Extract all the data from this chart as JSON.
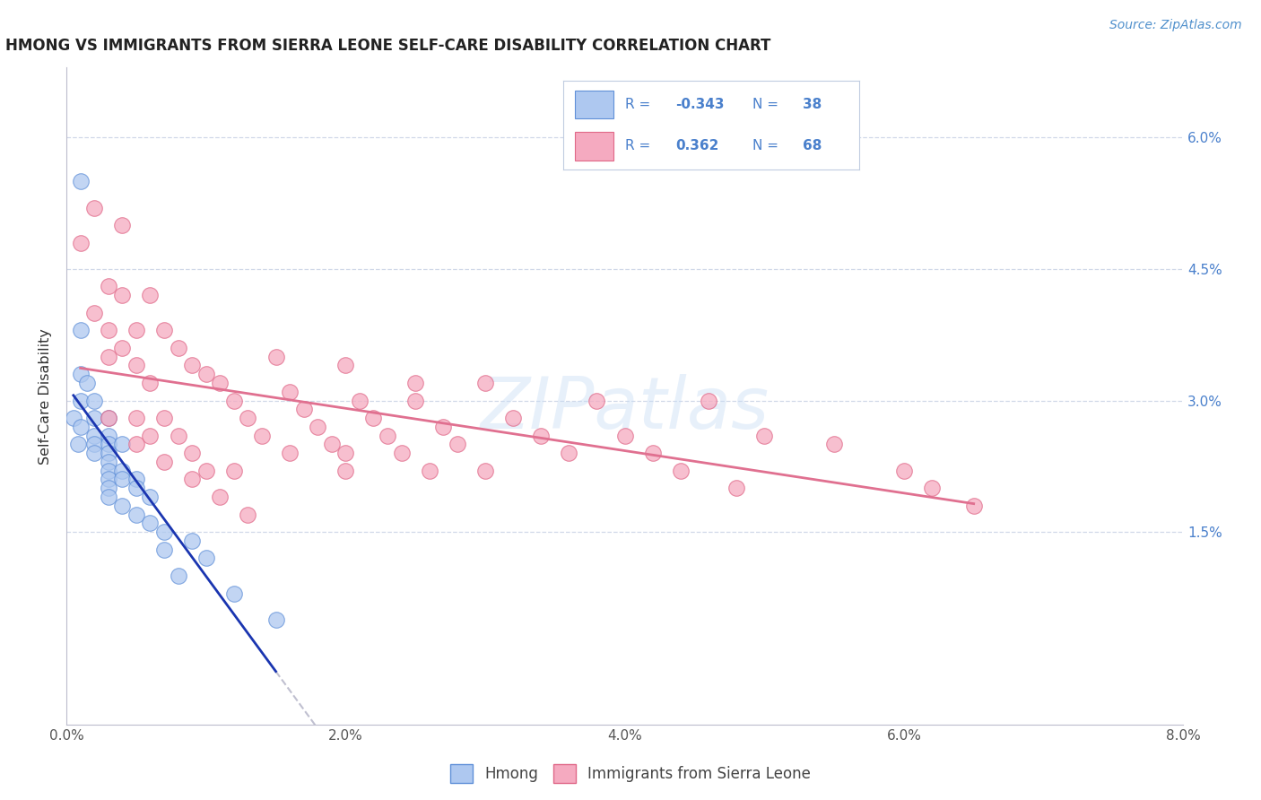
{
  "title": "HMONG VS IMMIGRANTS FROM SIERRA LEONE SELF-CARE DISABILITY CORRELATION CHART",
  "source": "Source: ZipAtlas.com",
  "ylabel": "Self-Care Disability",
  "xlim": [
    0.0,
    0.08
  ],
  "ylim": [
    0.0,
    0.065
  ],
  "x_ticks": [
    0.0,
    0.02,
    0.04,
    0.06,
    0.08
  ],
  "x_tick_labels": [
    "0.0%",
    "2.0%",
    "4.0%",
    "6.0%",
    "8.0%"
  ],
  "y_ticks": [
    0.0,
    0.015,
    0.03,
    0.045,
    0.06
  ],
  "y_tick_labels_right": [
    "",
    "1.5%",
    "3.0%",
    "4.5%",
    "6.0%"
  ],
  "hmong_color": "#aec8f0",
  "sierra_leone_color": "#f5aac0",
  "hmong_edge_color": "#6090d8",
  "sierra_leone_edge_color": "#e06888",
  "hmong_line_color": "#1a35b0",
  "sierra_leone_line_color": "#e07090",
  "hmong_dash_color": "#c0c0d0",
  "R_hmong": -0.343,
  "N_hmong": 38,
  "R_sierra": 0.362,
  "N_sierra": 68,
  "watermark": "ZIPatlas",
  "background": "#ffffff",
  "grid_color": "#d0d8e8",
  "title_color": "#222222",
  "right_tick_color": "#4a80cc",
  "legend_text_color": "#4a80cc",
  "legend_border_color": "#c0cce0",
  "hmong_x": [
    0.0005,
    0.0008,
    0.001,
    0.001,
    0.001,
    0.001,
    0.001,
    0.0015,
    0.002,
    0.002,
    0.002,
    0.002,
    0.002,
    0.003,
    0.003,
    0.003,
    0.003,
    0.003,
    0.003,
    0.003,
    0.003,
    0.003,
    0.004,
    0.004,
    0.004,
    0.004,
    0.005,
    0.005,
    0.005,
    0.006,
    0.006,
    0.007,
    0.007,
    0.008,
    0.009,
    0.01,
    0.012,
    0.015
  ],
  "hmong_y": [
    0.028,
    0.025,
    0.055,
    0.038,
    0.033,
    0.03,
    0.027,
    0.032,
    0.03,
    0.028,
    0.026,
    0.025,
    0.024,
    0.028,
    0.026,
    0.025,
    0.024,
    0.023,
    0.022,
    0.021,
    0.02,
    0.019,
    0.025,
    0.022,
    0.021,
    0.018,
    0.021,
    0.02,
    0.017,
    0.019,
    0.016,
    0.015,
    0.013,
    0.01,
    0.014,
    0.012,
    0.008,
    0.005
  ],
  "sierra_x": [
    0.001,
    0.002,
    0.002,
    0.003,
    0.003,
    0.003,
    0.004,
    0.004,
    0.004,
    0.005,
    0.005,
    0.005,
    0.006,
    0.006,
    0.006,
    0.007,
    0.007,
    0.008,
    0.008,
    0.009,
    0.009,
    0.01,
    0.01,
    0.011,
    0.012,
    0.012,
    0.013,
    0.014,
    0.015,
    0.016,
    0.016,
    0.017,
    0.018,
    0.019,
    0.02,
    0.02,
    0.021,
    0.022,
    0.023,
    0.024,
    0.025,
    0.026,
    0.027,
    0.028,
    0.03,
    0.03,
    0.032,
    0.034,
    0.036,
    0.038,
    0.04,
    0.042,
    0.044,
    0.046,
    0.048,
    0.05,
    0.055,
    0.06,
    0.062,
    0.065,
    0.003,
    0.005,
    0.007,
    0.009,
    0.011,
    0.013,
    0.02,
    0.025
  ],
  "sierra_y": [
    0.048,
    0.052,
    0.04,
    0.043,
    0.038,
    0.035,
    0.05,
    0.042,
    0.036,
    0.038,
    0.034,
    0.028,
    0.042,
    0.032,
    0.026,
    0.038,
    0.028,
    0.036,
    0.026,
    0.034,
    0.024,
    0.033,
    0.022,
    0.032,
    0.03,
    0.022,
    0.028,
    0.026,
    0.035,
    0.031,
    0.024,
    0.029,
    0.027,
    0.025,
    0.034,
    0.022,
    0.03,
    0.028,
    0.026,
    0.024,
    0.03,
    0.022,
    0.027,
    0.025,
    0.022,
    0.032,
    0.028,
    0.026,
    0.024,
    0.03,
    0.026,
    0.024,
    0.022,
    0.03,
    0.02,
    0.026,
    0.025,
    0.022,
    0.02,
    0.018,
    0.028,
    0.025,
    0.023,
    0.021,
    0.019,
    0.017,
    0.024,
    0.032
  ]
}
